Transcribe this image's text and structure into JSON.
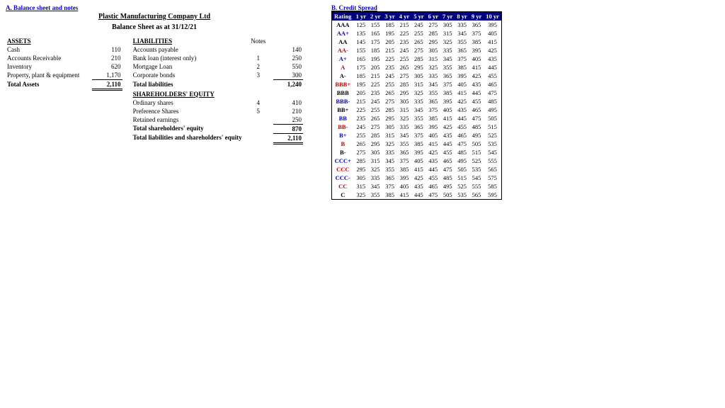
{
  "left": {
    "section_label": "A. Balance sheet and notes",
    "company": "Plastic Manufacturing Company Ltd",
    "bs_date": "Balance Sheet as at 31/12/21",
    "assets_head": "ASSETS",
    "liab_head": "LIABILITIES",
    "notes_head": "Notes",
    "sh_head": "SHAREHOLDERS' EQUITY",
    "assets": [
      {
        "label": "Cash",
        "val": "110"
      },
      {
        "label": "Accounts Receivable",
        "val": "210"
      },
      {
        "label": "Inventory",
        "val": "620"
      },
      {
        "label": "Property, plant & equipment",
        "val": "1,170"
      }
    ],
    "total_assets_label": "Total Assets",
    "total_assets": "2,110",
    "liabs": [
      {
        "label": "Accounts payable",
        "note": "",
        "val": "140"
      },
      {
        "label": "Bank loan (interest only)",
        "note": "1",
        "val": "250"
      },
      {
        "label": "Mortgage Loan",
        "note": "2",
        "val": "550"
      },
      {
        "label": "Corporate bonds",
        "note": "3",
        "val": "300"
      }
    ],
    "total_liab_label": "Total liabilities",
    "total_liab": "1,240",
    "equity": [
      {
        "label": "Ordinary shares",
        "note": "4",
        "val": "410"
      },
      {
        "label": "Preference Shares",
        "note": "5",
        "val": "210"
      },
      {
        "label": "Retained earnings",
        "note": "",
        "val": "250"
      }
    ],
    "total_eq_label": "Total shareholders' equity",
    "total_eq": "870",
    "grand_label": "Total liabilities and shareholders' equity",
    "grand_total": "2,110"
  },
  "right": {
    "section_label": "B. Credit Spread",
    "headers": [
      "Rating",
      "1 yr",
      "2 yr",
      "3 yr",
      "4 yr",
      "5 yr",
      "6 yr",
      "7 yr",
      "8 yr",
      "9 yr",
      "10 yr"
    ],
    "rows": [
      {
        "r": "AAA",
        "c": "blk",
        "v": [
          125,
          155,
          185,
          215,
          245,
          275,
          305,
          335,
          365,
          395
        ]
      },
      {
        "r": "AA+",
        "c": "blue",
        "v": [
          135,
          165,
          195,
          225,
          255,
          285,
          315,
          345,
          375,
          405
        ]
      },
      {
        "r": "AA",
        "c": "blk",
        "v": [
          145,
          175,
          205,
          235,
          265,
          295,
          325,
          355,
          385,
          415
        ]
      },
      {
        "r": "AA-",
        "c": "red",
        "v": [
          155,
          185,
          215,
          245,
          275,
          305,
          335,
          365,
          395,
          425
        ]
      },
      {
        "r": "A+",
        "c": "blue",
        "v": [
          165,
          195,
          225,
          255,
          285,
          315,
          345,
          375,
          405,
          435
        ]
      },
      {
        "r": "A",
        "c": "red",
        "v": [
          175,
          205,
          235,
          265,
          295,
          325,
          355,
          385,
          415,
          445
        ]
      },
      {
        "r": "A-",
        "c": "blk",
        "v": [
          185,
          215,
          245,
          275,
          305,
          335,
          365,
          395,
          425,
          455
        ]
      },
      {
        "r": "BBB+",
        "c": "red",
        "v": [
          195,
          225,
          255,
          285,
          315,
          345,
          375,
          405,
          435,
          465
        ]
      },
      {
        "r": "BBB",
        "c": "blk",
        "v": [
          205,
          235,
          265,
          295,
          325,
          355,
          385,
          415,
          445,
          475
        ]
      },
      {
        "r": "BBB-",
        "c": "blue",
        "v": [
          215,
          245,
          275,
          305,
          335,
          365,
          395,
          425,
          455,
          485
        ]
      },
      {
        "r": "BB+",
        "c": "blk",
        "v": [
          225,
          255,
          285,
          315,
          345,
          375,
          405,
          435,
          465,
          495
        ]
      },
      {
        "r": "BB",
        "c": "blue",
        "v": [
          235,
          265,
          295,
          325,
          355,
          385,
          415,
          445,
          475,
          505
        ]
      },
      {
        "r": "BB-",
        "c": "red",
        "v": [
          245,
          275,
          305,
          335,
          365,
          395,
          425,
          455,
          485,
          515
        ]
      },
      {
        "r": "B+",
        "c": "blue",
        "v": [
          255,
          285,
          315,
          345,
          375,
          405,
          435,
          465,
          495,
          525
        ]
      },
      {
        "r": "B",
        "c": "red",
        "v": [
          265,
          295,
          325,
          355,
          385,
          415,
          445,
          475,
          505,
          535
        ]
      },
      {
        "r": "B-",
        "c": "blk",
        "v": [
          275,
          305,
          335,
          365,
          395,
          425,
          455,
          485,
          515,
          545
        ]
      },
      {
        "r": "CCC+",
        "c": "blue",
        "v": [
          285,
          315,
          345,
          375,
          405,
          435,
          465,
          495,
          525,
          555
        ]
      },
      {
        "r": "CCC",
        "c": "red",
        "v": [
          295,
          325,
          355,
          385,
          415,
          445,
          475,
          505,
          535,
          565
        ]
      },
      {
        "r": "CCC-",
        "c": "blue",
        "v": [
          305,
          335,
          365,
          395,
          425,
          455,
          485,
          515,
          545,
          575
        ]
      },
      {
        "r": "CC",
        "c": "red",
        "v": [
          315,
          345,
          375,
          405,
          435,
          465,
          495,
          525,
          555,
          585
        ]
      },
      {
        "r": "C",
        "c": "blk",
        "v": [
          325,
          355,
          385,
          415,
          445,
          475,
          505,
          535,
          565,
          595
        ]
      }
    ]
  }
}
